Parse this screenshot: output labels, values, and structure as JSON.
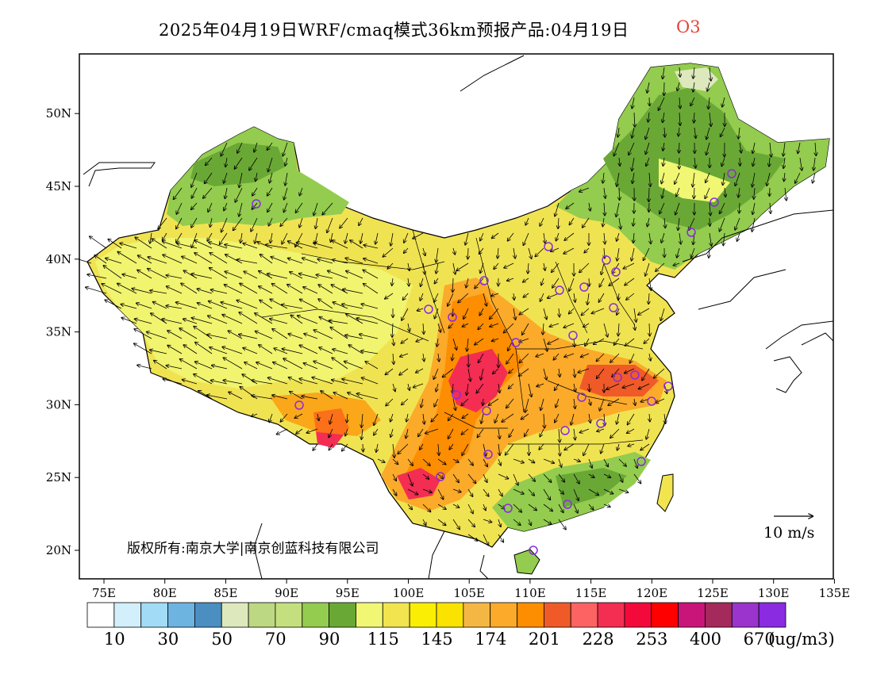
{
  "title": {
    "main": "2025年04月19日WRF/cmaq模式36km预报产品:04月19日",
    "variable": "O3"
  },
  "axes": {
    "lon_ticks": [
      "75E",
      "80E",
      "85E",
      "90E",
      "95E",
      "100E",
      "105E",
      "110E",
      "115E",
      "120E",
      "125E",
      "130E",
      "135E"
    ],
    "lat_ticks": [
      "20N",
      "25N",
      "30N",
      "35N",
      "40N",
      "45N",
      "50N"
    ]
  },
  "copyright": "版权所有:南京大学|南京创蓝科技有限公司",
  "wind_reference": {
    "label": "10 m/s"
  },
  "colorbar": {
    "colors": [
      "#ffffff",
      "#d2effb",
      "#a2dbf5",
      "#6db4e1",
      "#4a8ec2",
      "#dde9bd",
      "#bcd882",
      "#c4e07e",
      "#93cc4e",
      "#6aa836",
      "#f1f773",
      "#f1e44f",
      "#fbee05",
      "#fae300",
      "#f5b744",
      "#fbaa2a",
      "#fd8d01",
      "#f05a28",
      "#fd6363",
      "#f42d52",
      "#f30a3a",
      "#fe0000",
      "#c9157a",
      "#a32a5a",
      "#9a34cd",
      "#8a2be2"
    ],
    "labels": [
      "10",
      "30",
      "50",
      "70",
      "90",
      "115",
      "145",
      "174",
      "201",
      "228",
      "253",
      "400",
      "670"
    ],
    "unit": "(ug/m3)"
  }
}
